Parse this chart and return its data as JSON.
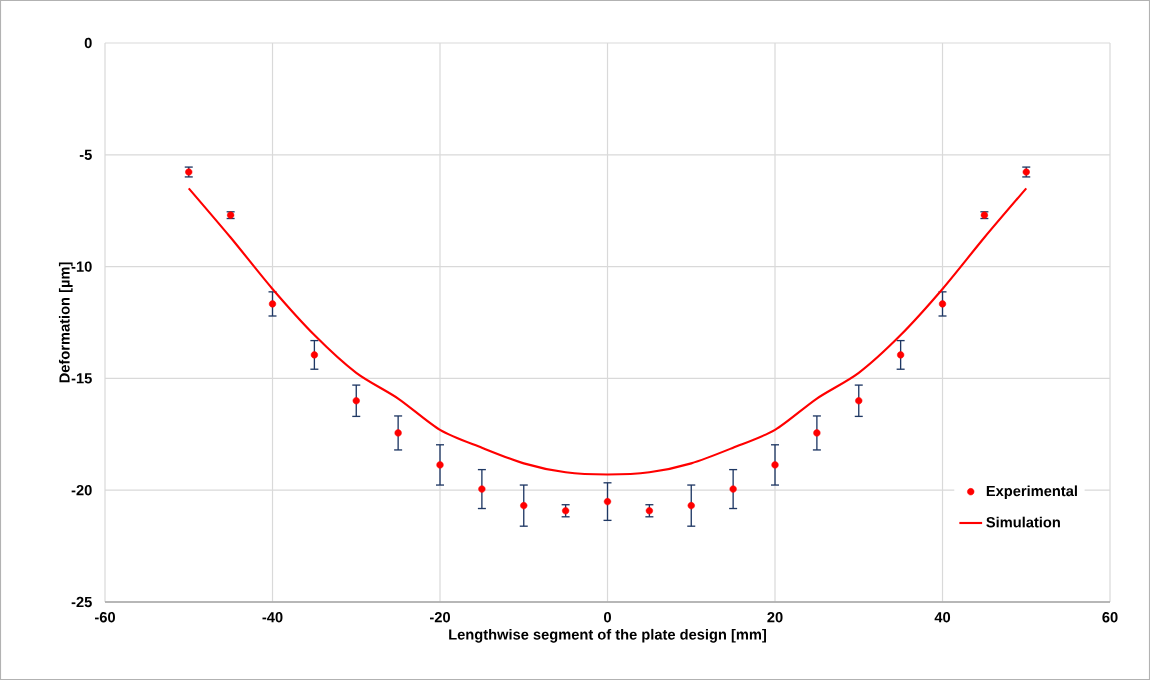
{
  "chart_data": {
    "type": "scatter",
    "xlabel": "Lengthwise segment of the plate design [mm]",
    "ylabel": "Deformation [µm]",
    "xlim": [
      -60,
      60
    ],
    "xticks": [
      -60,
      -40,
      -20,
      0,
      20,
      40,
      60
    ],
    "ylim": [
      -25,
      0
    ],
    "yticks": [
      -25,
      -20,
      -15,
      -10,
      -5,
      0
    ],
    "grid": true,
    "legend": "bottom right",
    "series": [
      {
        "name": "Experimental",
        "marker": "circle",
        "color": "#ff0000",
        "x": [
          -50,
          -45,
          -40,
          -35,
          -30,
          -25,
          -20,
          -15,
          -10,
          -5,
          0,
          5,
          10,
          15,
          20,
          25,
          30,
          35,
          40,
          45,
          50
        ],
        "values": [
          -5.77,
          -7.7,
          -11.67,
          -13.95,
          -16.0,
          -17.44,
          -18.87,
          -19.95,
          -20.69,
          -20.92,
          -20.51,
          -20.92,
          -20.69,
          -19.95,
          -18.87,
          -17.44,
          -16.0,
          -13.95,
          -11.67,
          -7.7,
          -5.77
        ],
        "errors": [
          0.22,
          0.15,
          0.54,
          0.64,
          0.7,
          0.76,
          0.9,
          0.87,
          0.92,
          0.27,
          0.84,
          0.27,
          0.92,
          0.87,
          0.9,
          0.76,
          0.7,
          0.64,
          0.54,
          0.15,
          0.22
        ]
      },
      {
        "name": "Simulation",
        "type": "line",
        "marker": "none",
        "color": "#ff0000",
        "x": [
          -50,
          -45,
          -40,
          -35,
          -30,
          -25,
          -20,
          -15,
          -10,
          -5,
          0,
          5,
          10,
          15,
          20,
          25,
          30,
          35,
          40,
          45,
          50
        ],
        "values": [
          -6.5,
          -8.7,
          -11.0,
          -13.06,
          -14.75,
          -15.9,
          -17.3,
          -18.1,
          -18.8,
          -19.2,
          -19.3,
          -19.2,
          -18.8,
          -18.1,
          -17.3,
          -15.9,
          -14.75,
          -13.06,
          -11.0,
          -8.7,
          -6.5
        ]
      }
    ]
  }
}
